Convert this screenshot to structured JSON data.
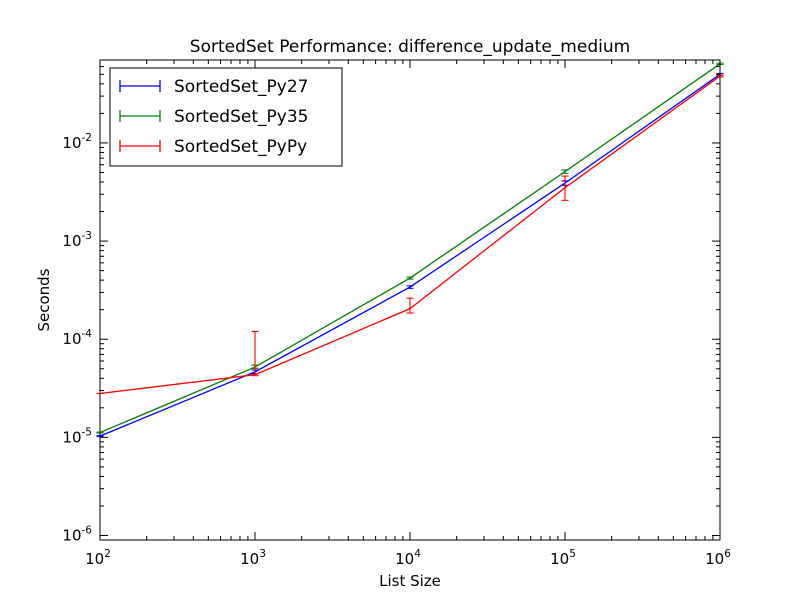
{
  "chart_data": {
    "type": "line",
    "title": "SortedSet Performance: difference_update_medium",
    "xlabel": "List Size",
    "ylabel": "Seconds",
    "xscale": "log",
    "yscale": "log",
    "xlim": [
      100,
      1000000
    ],
    "ylim": [
      9e-07,
      0.07
    ],
    "x_ticks": [
      {
        "base": "10",
        "exp": "2",
        "value": 100
      },
      {
        "base": "10",
        "exp": "3",
        "value": 1000
      },
      {
        "base": "10",
        "exp": "4",
        "value": 10000
      },
      {
        "base": "10",
        "exp": "5",
        "value": 100000
      },
      {
        "base": "10",
        "exp": "6",
        "value": 1000000
      }
    ],
    "y_ticks": [
      {
        "base": "10",
        "exp": "-6",
        "value": 1e-06
      },
      {
        "base": "10",
        "exp": "-5",
        "value": 1e-05
      },
      {
        "base": "10",
        "exp": "-4",
        "value": 0.0001
      },
      {
        "base": "10",
        "exp": "-3",
        "value": 0.001
      },
      {
        "base": "10",
        "exp": "-2",
        "value": 0.01
      }
    ],
    "grid": false,
    "legend_position": "top-left",
    "x": [
      100,
      1000,
      10000,
      100000,
      1000000
    ],
    "series": [
      {
        "name": "SortedSet_Py27",
        "color": "#0000ff",
        "values": [
          1.03e-05,
          4.65e-05,
          0.00034,
          0.0039,
          0.05
        ],
        "err_low": [
          1.02e-05,
          4.45e-05,
          0.00033,
          0.0037,
          0.049
        ],
        "err_high": [
          1.04e-05,
          4.85e-05,
          0.00035,
          0.0041,
          0.051
        ]
      },
      {
        "name": "SortedSet_Py35",
        "color": "#008000",
        "values": [
          1.12e-05,
          5.2e-05,
          0.00042,
          0.0051,
          0.064
        ],
        "err_low": [
          1.11e-05,
          5.05e-05,
          0.00041,
          0.0049,
          0.063
        ],
        "err_high": [
          1.13e-05,
          5.45e-05,
          0.00043,
          0.0053,
          0.065
        ]
      },
      {
        "name": "SortedSet_PyPy",
        "color": "#ff0000",
        "values": [
          2.8e-05,
          4.35e-05,
          0.000205,
          0.0035,
          0.048
        ],
        "err_low": [
          2.8e-05,
          4.25e-05,
          0.000185,
          0.0026,
          0.047
        ],
        "err_high": [
          2.8e-05,
          0.00012,
          0.000262,
          0.0046,
          0.049
        ]
      }
    ]
  }
}
